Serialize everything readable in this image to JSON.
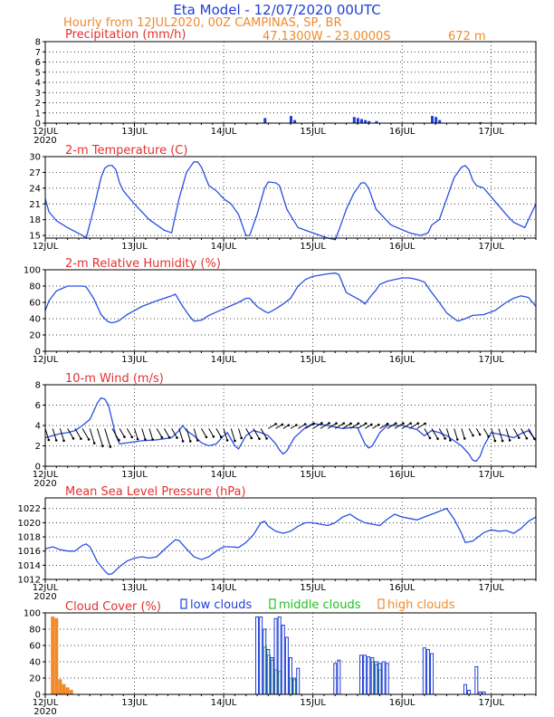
{
  "header": {
    "title": "Eta Model - 12/07/2020 00UTC",
    "subtitle": "Hourly from 12JUL2020, 00Z  CAMPINAS, SP, BR",
    "location": "47.1300W - 23.0000S",
    "elevation": "672  m"
  },
  "colors": {
    "line": "#2a4fe0",
    "grid": "#000000",
    "low": "#1f3fd6",
    "mid": "#20c020",
    "high": "#f08a2c",
    "label": "#e53030"
  },
  "xaxis": {
    "hours": 132,
    "ticks": [
      {
        "hour": 0,
        "label": "12JUL",
        "year": "2020"
      },
      {
        "hour": 24,
        "label": "13JUL"
      },
      {
        "hour": 48,
        "label": "14JUL"
      },
      {
        "hour": 72,
        "label": "15JUL"
      },
      {
        "hour": 96,
        "label": "16JUL"
      },
      {
        "hour": 120,
        "label": "17JUL"
      }
    ]
  },
  "chart_data": [
    {
      "type": "bar",
      "title": "Precipitation (mm/h)",
      "ylim": [
        0,
        8
      ],
      "yticks": [
        0,
        1,
        2,
        3,
        4,
        5,
        6,
        7,
        8
      ],
      "bars": [
        [
          59,
          0.5
        ],
        [
          66,
          0.7
        ],
        [
          67,
          0.3
        ],
        [
          83,
          0.6
        ],
        [
          84,
          0.5
        ],
        [
          85,
          0.4
        ],
        [
          86,
          0.3
        ],
        [
          87,
          0.2
        ],
        [
          89,
          0.2
        ],
        [
          104,
          0.7
        ],
        [
          105,
          0.6
        ],
        [
          106,
          0.3
        ],
        [
          117,
          0.1
        ]
      ]
    },
    {
      "type": "line",
      "title": "2-m Temperature (C)",
      "ylim": [
        14.5,
        30
      ],
      "yticks": [
        15,
        18,
        21,
        24,
        27,
        30
      ],
      "points": [
        [
          0,
          22
        ],
        [
          1,
          19.5
        ],
        [
          3,
          17.8
        ],
        [
          6,
          16.5
        ],
        [
          10,
          15
        ],
        [
          11,
          14.5
        ],
        [
          13,
          20
        ],
        [
          15,
          26
        ],
        [
          16,
          27.8
        ],
        [
          17,
          28.3
        ],
        [
          18,
          28.3
        ],
        [
          19,
          27.5
        ],
        [
          20,
          25
        ],
        [
          21,
          23.5
        ],
        [
          24,
          21
        ],
        [
          28,
          18
        ],
        [
          32,
          16
        ],
        [
          34,
          15.5
        ],
        [
          36,
          22
        ],
        [
          38,
          27
        ],
        [
          40,
          29
        ],
        [
          41,
          29
        ],
        [
          42,
          28
        ],
        [
          44,
          24.5
        ],
        [
          46,
          23.5
        ],
        [
          48,
          22
        ],
        [
          50,
          21
        ],
        [
          52,
          19
        ],
        [
          54,
          15
        ],
        [
          55,
          15
        ],
        [
          57,
          19
        ],
        [
          59,
          24
        ],
        [
          60,
          25.2
        ],
        [
          62,
          25
        ],
        [
          63,
          24.5
        ],
        [
          65,
          20
        ],
        [
          68,
          16.5
        ],
        [
          72,
          15.5
        ],
        [
          76,
          14.5
        ],
        [
          78,
          14.2
        ],
        [
          79,
          16
        ],
        [
          81,
          20
        ],
        [
          83,
          23
        ],
        [
          85,
          25
        ],
        [
          86,
          25
        ],
        [
          87,
          24
        ],
        [
          89,
          20
        ],
        [
          93,
          17
        ],
        [
          98,
          15.5
        ],
        [
          101,
          15
        ],
        [
          103,
          15.5
        ],
        [
          104,
          17
        ],
        [
          106,
          18
        ],
        [
          108,
          22
        ],
        [
          110,
          26
        ],
        [
          112,
          28
        ],
        [
          113,
          28.3
        ],
        [
          114,
          27.5
        ],
        [
          115,
          25.5
        ],
        [
          116,
          24.5
        ],
        [
          118,
          24
        ],
        [
          121,
          21.5
        ],
        [
          124,
          19
        ],
        [
          126,
          17.5
        ],
        [
          129,
          16.5
        ],
        [
          130,
          18
        ],
        [
          132,
          21
        ]
      ]
    },
    {
      "type": "line",
      "title": "2-m Relative Humidity (%)",
      "ylim": [
        0,
        100
      ],
      "yticks": [
        0,
        20,
        40,
        60,
        80,
        100
      ],
      "points": [
        [
          0,
          50
        ],
        [
          1,
          62
        ],
        [
          3,
          74
        ],
        [
          6,
          80
        ],
        [
          10,
          80
        ],
        [
          11,
          79
        ],
        [
          13,
          65
        ],
        [
          14,
          55
        ],
        [
          15,
          45
        ],
        [
          16,
          40
        ],
        [
          17,
          36
        ],
        [
          18,
          35
        ],
        [
          19,
          36
        ],
        [
          20,
          38
        ],
        [
          22,
          45
        ],
        [
          26,
          55
        ],
        [
          30,
          62
        ],
        [
          34,
          68
        ],
        [
          35,
          70
        ],
        [
          37,
          55
        ],
        [
          39,
          42
        ],
        [
          40,
          37
        ],
        [
          42,
          38
        ],
        [
          44,
          44
        ],
        [
          48,
          52
        ],
        [
          52,
          60
        ],
        [
          54,
          65
        ],
        [
          55,
          65
        ],
        [
          57,
          55
        ],
        [
          59,
          49
        ],
        [
          60,
          47
        ],
        [
          62,
          52
        ],
        [
          64,
          58
        ],
        [
          66,
          65
        ],
        [
          68,
          80
        ],
        [
          70,
          88
        ],
        [
          72,
          92
        ],
        [
          76,
          95
        ],
        [
          78,
          96
        ],
        [
          79,
          94
        ],
        [
          81,
          72
        ],
        [
          83,
          67
        ],
        [
          85,
          62
        ],
        [
          86,
          58
        ],
        [
          88,
          70
        ],
        [
          89,
          75
        ],
        [
          90,
          82
        ],
        [
          92,
          86
        ],
        [
          96,
          90
        ],
        [
          98,
          90
        ],
        [
          100,
          88
        ],
        [
          102,
          85
        ],
        [
          104,
          72
        ],
        [
          106,
          60
        ],
        [
          108,
          47
        ],
        [
          110,
          40
        ],
        [
          111,
          37
        ],
        [
          113,
          40
        ],
        [
          115,
          44
        ],
        [
          118,
          45
        ],
        [
          121,
          50
        ],
        [
          124,
          60
        ],
        [
          126,
          65
        ],
        [
          128,
          68
        ],
        [
          130,
          66
        ],
        [
          132,
          55
        ]
      ]
    },
    {
      "type": "line",
      "title": "10-m Wind (m/s)",
      "ylim": [
        0,
        8
      ],
      "yticks": [
        0,
        2,
        4,
        6,
        8
      ],
      "points": [
        [
          0,
          2.8
        ],
        [
          2,
          3
        ],
        [
          4,
          3.2
        ],
        [
          6,
          3.3
        ],
        [
          8,
          3.5
        ],
        [
          10,
          4
        ],
        [
          12,
          4.6
        ],
        [
          14,
          6.2
        ],
        [
          15,
          6.7
        ],
        [
          16,
          6.6
        ],
        [
          17,
          6
        ],
        [
          18,
          4.5
        ],
        [
          19,
          3
        ],
        [
          20,
          2.2
        ],
        [
          22,
          2.3
        ],
        [
          26,
          2.5
        ],
        [
          30,
          2.6
        ],
        [
          34,
          2.8
        ],
        [
          36,
          3.5
        ],
        [
          37,
          4
        ],
        [
          38,
          3.5
        ],
        [
          40,
          3
        ],
        [
          42,
          2.3
        ],
        [
          44,
          2
        ],
        [
          46,
          2.2
        ],
        [
          48,
          3
        ],
        [
          49,
          3.3
        ],
        [
          51,
          2
        ],
        [
          52,
          1.7
        ],
        [
          54,
          3
        ],
        [
          56,
          3.5
        ],
        [
          58,
          3.3
        ],
        [
          60,
          3
        ],
        [
          62,
          2.2
        ],
        [
          63,
          1.6
        ],
        [
          64,
          1.2
        ],
        [
          65,
          1.5
        ],
        [
          67,
          2.8
        ],
        [
          70,
          3.8
        ],
        [
          72,
          4.2
        ],
        [
          76,
          4
        ],
        [
          80,
          3.7
        ],
        [
          82,
          3.8
        ],
        [
          84,
          3.8
        ],
        [
          86,
          2.2
        ],
        [
          87,
          1.8
        ],
        [
          88,
          2
        ],
        [
          90,
          3.3
        ],
        [
          92,
          4
        ],
        [
          96,
          4
        ],
        [
          100,
          3.6
        ],
        [
          102,
          3
        ],
        [
          104,
          3.5
        ],
        [
          106,
          3.3
        ],
        [
          108,
          3
        ],
        [
          110,
          2.5
        ],
        [
          112,
          2
        ],
        [
          114,
          1.2
        ],
        [
          115,
          0.6
        ],
        [
          116,
          0.5
        ],
        [
          117,
          1
        ],
        [
          118,
          2
        ],
        [
          120,
          3.3
        ],
        [
          124,
          3
        ],
        [
          126,
          2.8
        ],
        [
          128,
          3.2
        ],
        [
          130,
          3.5
        ],
        [
          132,
          2.5
        ]
      ]
    },
    {
      "type": "line",
      "title": "Mean Sea Level Pressure (hPa)",
      "ylim": [
        1012,
        1023.5
      ],
      "yticks": [
        1012,
        1014,
        1016,
        1018,
        1020,
        1022
      ],
      "points": [
        [
          0,
          1016.3
        ],
        [
          2,
          1016.6
        ],
        [
          4,
          1016.2
        ],
        [
          6,
          1016
        ],
        [
          8,
          1016
        ],
        [
          10,
          1016.8
        ],
        [
          11,
          1017
        ],
        [
          12,
          1016.6
        ],
        [
          14,
          1014.5
        ],
        [
          16,
          1013.2
        ],
        [
          17,
          1012.7
        ],
        [
          18,
          1012.8
        ],
        [
          20,
          1013.8
        ],
        [
          22,
          1014.6
        ],
        [
          24,
          1015
        ],
        [
          26,
          1015.2
        ],
        [
          28,
          1015
        ],
        [
          30,
          1015.2
        ],
        [
          32,
          1016.2
        ],
        [
          35,
          1017.6
        ],
        [
          36,
          1017.5
        ],
        [
          38,
          1016.3
        ],
        [
          40,
          1015.2
        ],
        [
          42,
          1014.8
        ],
        [
          44,
          1015.2
        ],
        [
          46,
          1016
        ],
        [
          48,
          1016.6
        ],
        [
          50,
          1016.6
        ],
        [
          52,
          1016.5
        ],
        [
          54,
          1017.2
        ],
        [
          56,
          1018.3
        ],
        [
          58,
          1020
        ],
        [
          59,
          1020.2
        ],
        [
          60,
          1019.5
        ],
        [
          62,
          1018.8
        ],
        [
          64,
          1018.5
        ],
        [
          66,
          1018.8
        ],
        [
          68,
          1019.5
        ],
        [
          70,
          1020
        ],
        [
          72,
          1020
        ],
        [
          74,
          1019.8
        ],
        [
          76,
          1019.6
        ],
        [
          78,
          1020
        ],
        [
          80,
          1020.8
        ],
        [
          82,
          1021.2
        ],
        [
          84,
          1020.5
        ],
        [
          86,
          1020
        ],
        [
          88,
          1019.8
        ],
        [
          90,
          1019.6
        ],
        [
          92,
          1020.5
        ],
        [
          94,
          1021.2
        ],
        [
          96,
          1020.8
        ],
        [
          98,
          1020.6
        ],
        [
          100,
          1020.4
        ],
        [
          102,
          1020.8
        ],
        [
          104,
          1021.2
        ],
        [
          106,
          1021.6
        ],
        [
          108,
          1022
        ],
        [
          110,
          1020.5
        ],
        [
          112,
          1018.5
        ],
        [
          113,
          1017.2
        ],
        [
          115,
          1017.4
        ],
        [
          117,
          1018.2
        ],
        [
          118,
          1018.6
        ],
        [
          120,
          1019
        ],
        [
          122,
          1018.8
        ],
        [
          124,
          1018.9
        ],
        [
          126,
          1018.5
        ],
        [
          128,
          1019.2
        ],
        [
          130,
          1020.2
        ],
        [
          132,
          1020.8
        ]
      ]
    },
    {
      "type": "bar",
      "title": "Cloud Cover (%)",
      "ylim": [
        0,
        100
      ],
      "yticks": [
        0,
        20,
        40,
        60,
        80,
        100
      ],
      "legend": [
        "low clouds",
        "middle clouds",
        "high clouds"
      ],
      "low": [
        [
          57,
          95
        ],
        [
          58,
          95
        ],
        [
          59,
          80
        ],
        [
          60,
          55
        ],
        [
          61,
          45
        ],
        [
          62,
          93
        ],
        [
          63,
          95
        ],
        [
          64,
          85
        ],
        [
          65,
          70
        ],
        [
          66,
          45
        ],
        [
          67,
          20
        ],
        [
          68,
          32
        ],
        [
          78,
          38
        ],
        [
          79,
          42
        ],
        [
          85,
          48
        ],
        [
          86,
          48
        ],
        [
          87,
          46
        ],
        [
          88,
          45
        ],
        [
          89,
          40
        ],
        [
          90,
          38
        ],
        [
          91,
          40
        ],
        [
          92,
          38
        ],
        [
          102,
          57
        ],
        [
          103,
          55
        ],
        [
          104,
          50
        ],
        [
          113,
          12
        ],
        [
          114,
          5
        ],
        [
          116,
          34
        ],
        [
          117,
          3
        ],
        [
          118,
          3
        ]
      ],
      "mid": [
        [
          59,
          58
        ],
        [
          60,
          48
        ],
        [
          61,
          42
        ],
        [
          62,
          30
        ],
        [
          63,
          28
        ],
        [
          66,
          20
        ],
        [
          67,
          18
        ],
        [
          88,
          40
        ],
        [
          89,
          36
        ],
        [
          90,
          30
        ]
      ],
      "high": [
        [
          2,
          95
        ],
        [
          3,
          93
        ],
        [
          4,
          18
        ],
        [
          5,
          12
        ],
        [
          6,
          8
        ],
        [
          7,
          5
        ]
      ]
    }
  ]
}
